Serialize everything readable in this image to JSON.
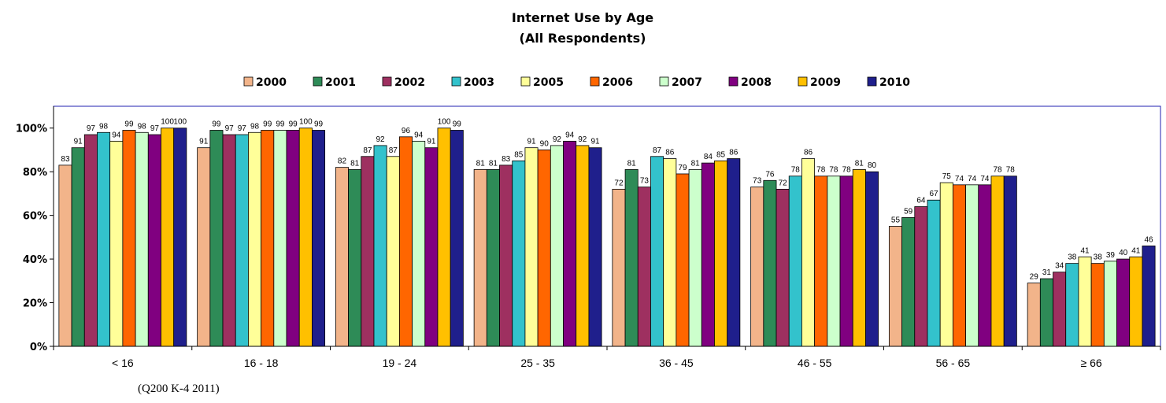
{
  "source_note": "(Q200 K-4 2011)",
  "chart_data": {
    "type": "bar",
    "title": "Internet Use by Age",
    "subtitle": "(All Respondents)",
    "categories": [
      "< 16",
      "16 - 18",
      "19 - 24",
      "25 - 35",
      "36 - 45",
      "46 - 55",
      "56 - 65",
      "≥ 66"
    ],
    "ylim": [
      0,
      110
    ],
    "yticks": [
      "0%",
      "20%",
      "40%",
      "60%",
      "80%",
      "100%"
    ],
    "grid": false,
    "legend_position": "top",
    "series": [
      {
        "name": "2000",
        "color": "#F2B48A",
        "values": [
          83,
          91,
          82,
          81,
          72,
          73,
          55,
          29
        ]
      },
      {
        "name": "2001",
        "color": "#2E8B57",
        "values": [
          91,
          99,
          81,
          81,
          81,
          76,
          59,
          31
        ]
      },
      {
        "name": "2002",
        "color": "#9E3060",
        "values": [
          97,
          97,
          87,
          83,
          73,
          72,
          64,
          34
        ]
      },
      {
        "name": "2003",
        "color": "#33C2CC",
        "values": [
          98,
          97,
          92,
          85,
          87,
          78,
          67,
          38
        ]
      },
      {
        "name": "2005",
        "color": "#FFFF99",
        "values": [
          94,
          98,
          87,
          91,
          86,
          86,
          75,
          41
        ]
      },
      {
        "name": "2006",
        "color": "#FF6600",
        "values": [
          99,
          99,
          96,
          90,
          79,
          78,
          74,
          38
        ]
      },
      {
        "name": "2007",
        "color": "#CCFFCC",
        "values": [
          98,
          99,
          94,
          92,
          81,
          78,
          74,
          39
        ]
      },
      {
        "name": "2008",
        "color": "#800080",
        "values": [
          97,
          99,
          91,
          94,
          84,
          78,
          74,
          40
        ]
      },
      {
        "name": "2009",
        "color": "#FFC000",
        "values": [
          100,
          100,
          100,
          92,
          85,
          81,
          78,
          41
        ]
      },
      {
        "name": "2010",
        "color": "#1F1F8C",
        "values": [
          100,
          99,
          99,
          91,
          86,
          80,
          78,
          46
        ]
      }
    ]
  }
}
